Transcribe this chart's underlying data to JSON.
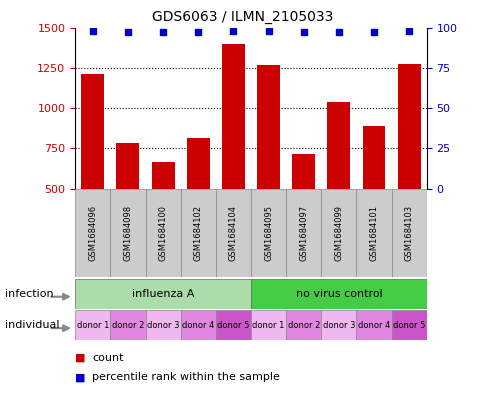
{
  "title": "GDS6063 / ILMN_2105033",
  "samples": [
    "GSM1684096",
    "GSM1684098",
    "GSM1684100",
    "GSM1684102",
    "GSM1684104",
    "GSM1684095",
    "GSM1684097",
    "GSM1684099",
    "GSM1684101",
    "GSM1684103"
  ],
  "counts": [
    1210,
    785,
    665,
    815,
    1400,
    1270,
    715,
    1040,
    890,
    1275
  ],
  "percentile_ranks": [
    98,
    97,
    97,
    97,
    98,
    98,
    97,
    97,
    97,
    98
  ],
  "bar_color": "#cc0000",
  "dot_color": "#0000cc",
  "ylim_left": [
    500,
    1500
  ],
  "ylim_right": [
    0,
    100
  ],
  "yticks_left": [
    500,
    750,
    1000,
    1250,
    1500
  ],
  "yticks_right": [
    0,
    25,
    50,
    75,
    100
  ],
  "influenza_color": "#aaddaa",
  "novirus_color": "#44cc44",
  "sample_box_color": "#cccccc",
  "individuals": [
    "donor 1",
    "donor 2",
    "donor 3",
    "donor 4",
    "donor 5",
    "donor 1",
    "donor 2",
    "donor 3",
    "donor 4",
    "donor 5"
  ],
  "individual_colors": [
    "#f0b8f0",
    "#e088e0",
    "#f0b8f0",
    "#e088e0",
    "#cc55cc",
    "#f0b8f0",
    "#e088e0",
    "#f0b8f0",
    "#e088e0",
    "#cc55cc"
  ],
  "infection_label": "infection",
  "individual_label": "individual",
  "legend_count_label": "count",
  "legend_pct_label": "percentile rank within the sample",
  "label_color_left": "#cc0000",
  "label_color_right": "#0000cc"
}
